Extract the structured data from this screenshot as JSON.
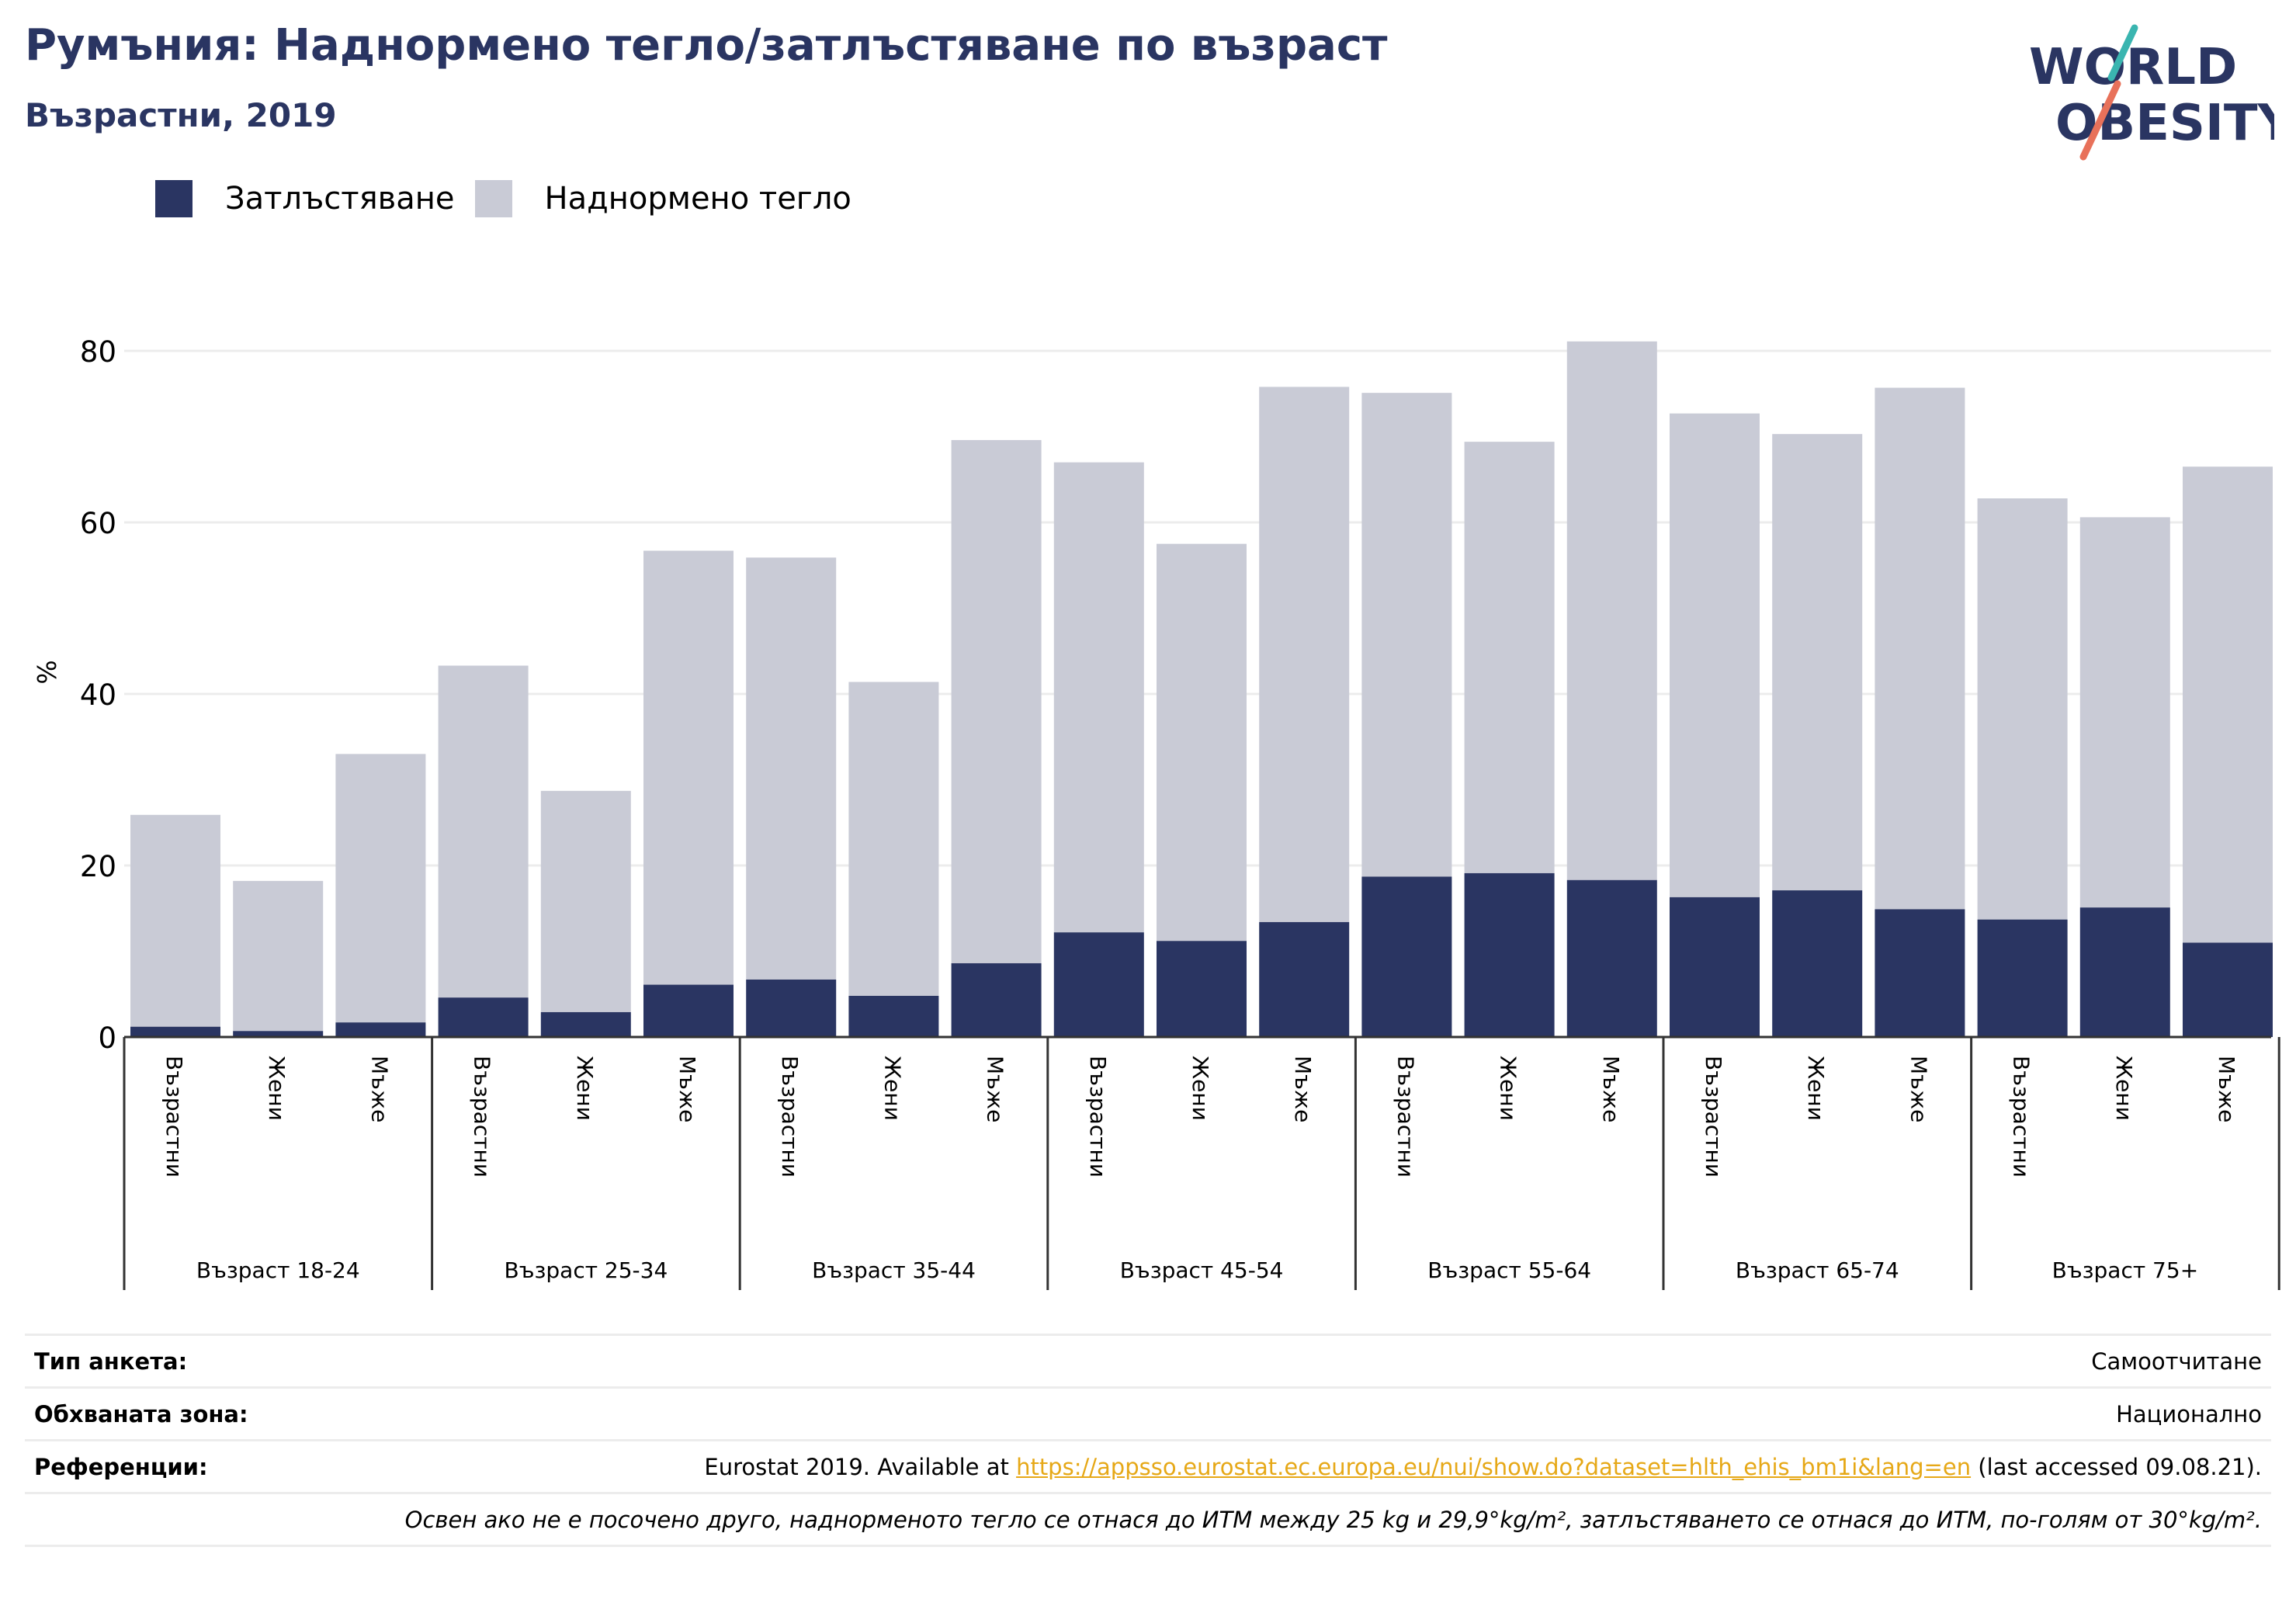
{
  "header": {
    "title": "Румъния: Наднормено тегло/затлъстяване по възраст",
    "subtitle": "Възрастни, 2019"
  },
  "logo": {
    "line1": "WORLD",
    "line2": "OBESITY",
    "navy": "#2a3562",
    "teal": "#3ab5b0",
    "coral": "#e8715a"
  },
  "colors": {
    "obesity": "#2a3562",
    "overweight": "#c9cbd6",
    "grid": "#ececec",
    "axis": "#333333"
  },
  "chart_data": {
    "type": "bar",
    "stacked": true,
    "ylabel": "%",
    "ylim": [
      0,
      85
    ],
    "yticks": [
      0,
      20,
      40,
      60,
      80
    ],
    "grid": "horizontal",
    "legend_position": "top-left",
    "legend": [
      "Затлъстяване",
      "Наднормено тегло"
    ],
    "groups": [
      "Възраст 18-24",
      "Възраст 25-34",
      "Възраст 35-44",
      "Възраст 45-54",
      "Възраст 55-64",
      "Възраст 65-74",
      "Възраст 75+"
    ],
    "subcategories": [
      "Възрастни",
      "Жени",
      "Мъже"
    ],
    "series": [
      {
        "name": "Затлъстяване",
        "values": [
          1.2,
          0.7,
          1.7,
          4.6,
          2.9,
          6.1,
          6.7,
          4.8,
          8.6,
          12.2,
          11.2,
          13.4,
          18.7,
          19.1,
          18.3,
          16.3,
          17.1,
          14.9,
          13.7,
          15.1,
          11.0
        ]
      },
      {
        "name": "Наднормено тегло",
        "values": [
          24.7,
          17.5,
          31.3,
          38.7,
          25.8,
          50.6,
          49.2,
          36.6,
          61.0,
          54.8,
          46.3,
          62.4,
          56.4,
          50.3,
          62.8,
          56.4,
          53.2,
          60.8,
          49.1,
          45.5,
          55.5
        ]
      }
    ]
  },
  "info": [
    {
      "label": "Тип анкета:",
      "value": "Самоотчитане"
    },
    {
      "label": "Обхваната зона:",
      "value": "Национално"
    },
    {
      "label": "Референции:",
      "value_prefix": "Eurostat 2019. Available at ",
      "link": "https://appsso.eurostat.ec.europa.eu/nui/show.do?dataset=hlth_ehis_bm1i&lang=en",
      "value_suffix": " (last accessed 09.08.21)."
    }
  ],
  "footnote": "Освен ако не е посочено друго, наднорменото тегло се отнася до ИТМ между 25 kg и 29,9°kg/m², затлъстяването се отнася до ИТМ, по-голям от 30°kg/m²."
}
